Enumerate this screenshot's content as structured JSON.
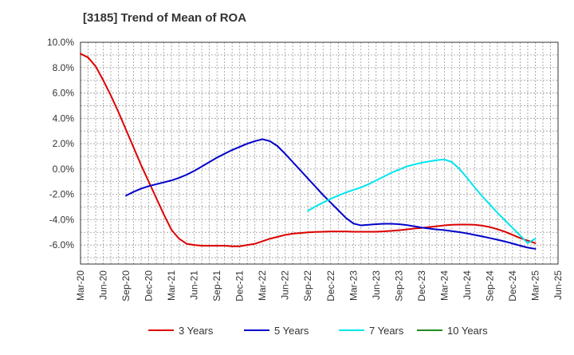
{
  "chart_data": {
    "type": "line",
    "title": "[3185]  Trend of Mean of ROA",
    "xlabel": "",
    "ylabel": "",
    "ylim": [
      -7.5,
      10
    ],
    "y_ticks": [
      10,
      8,
      6,
      4,
      2,
      0,
      -2,
      -4,
      -6
    ],
    "y_tick_labels": [
      "10.0%",
      "8.0%",
      "6.0%",
      "4.0%",
      "2.0%",
      "0.0%",
      "-2.0%",
      "-4.0%",
      "-6.0%"
    ],
    "x_ticks": [
      "Mar-20",
      "Jun-20",
      "Sep-20",
      "Dec-20",
      "Mar-21",
      "Jun-21",
      "Sep-21",
      "Dec-21",
      "Mar-22",
      "Jun-22",
      "Sep-22",
      "Dec-22",
      "Mar-23",
      "Jun-23",
      "Sep-23",
      "Dec-23",
      "Mar-24",
      "Jun-24",
      "Sep-24",
      "Dec-24",
      "Mar-25",
      "Jun-25"
    ],
    "grid": true,
    "legend_position": "bottom",
    "series": [
      {
        "name": "3 Years",
        "color": "#dd0000",
        "points": [
          [
            "Mar-20",
            9.1
          ],
          [
            "Apr-20",
            8.8
          ],
          [
            "May-20",
            8.1
          ],
          [
            "Jun-20",
            7.0
          ],
          [
            "Jul-20",
            5.8
          ],
          [
            "Aug-20",
            4.5
          ],
          [
            "Sep-20",
            3.1
          ],
          [
            "Oct-20",
            1.7
          ],
          [
            "Nov-20",
            0.3
          ],
          [
            "Dec-20",
            -1.0
          ],
          [
            "Jan-21",
            -2.3
          ],
          [
            "Feb-21",
            -3.6
          ],
          [
            "Mar-21",
            -4.8
          ],
          [
            "Apr-21",
            -5.5
          ],
          [
            "May-21",
            -5.9
          ],
          [
            "Jun-21",
            -6.0
          ],
          [
            "Jul-21",
            -6.05
          ],
          [
            "Aug-21",
            -6.05
          ],
          [
            "Sep-21",
            -6.05
          ],
          [
            "Oct-21",
            -6.05
          ],
          [
            "Nov-21",
            -6.1
          ],
          [
            "Dec-21",
            -6.1
          ],
          [
            "Jan-22",
            -6.0
          ],
          [
            "Feb-22",
            -5.9
          ],
          [
            "Mar-22",
            -5.7
          ],
          [
            "Apr-22",
            -5.5
          ],
          [
            "May-22",
            -5.35
          ],
          [
            "Jun-22",
            -5.2
          ],
          [
            "Jul-22",
            -5.1
          ],
          [
            "Aug-22",
            -5.05
          ],
          [
            "Sep-22",
            -5.0
          ],
          [
            "Oct-22",
            -4.97
          ],
          [
            "Nov-22",
            -4.95
          ],
          [
            "Dec-22",
            -4.93
          ],
          [
            "Jan-23",
            -4.93
          ],
          [
            "Feb-23",
            -4.93
          ],
          [
            "Mar-23",
            -4.95
          ],
          [
            "Apr-23",
            -4.95
          ],
          [
            "May-23",
            -4.95
          ],
          [
            "Jun-23",
            -4.95
          ],
          [
            "Jul-23",
            -4.92
          ],
          [
            "Aug-23",
            -4.88
          ],
          [
            "Sep-23",
            -4.83
          ],
          [
            "Oct-23",
            -4.77
          ],
          [
            "Nov-23",
            -4.7
          ],
          [
            "Dec-23",
            -4.65
          ],
          [
            "Jan-24",
            -4.58
          ],
          [
            "Feb-24",
            -4.52
          ],
          [
            "Mar-24",
            -4.45
          ],
          [
            "Apr-24",
            -4.4
          ],
          [
            "May-24",
            -4.38
          ],
          [
            "Jun-24",
            -4.38
          ],
          [
            "Jul-24",
            -4.4
          ],
          [
            "Aug-24",
            -4.47
          ],
          [
            "Sep-24",
            -4.58
          ],
          [
            "Oct-24",
            -4.75
          ],
          [
            "Nov-24",
            -4.95
          ],
          [
            "Dec-24",
            -5.2
          ],
          [
            "Jan-25",
            -5.45
          ],
          [
            "Feb-25",
            -5.65
          ],
          [
            "Mar-25",
            -5.85
          ]
        ]
      },
      {
        "name": "5 Years",
        "color": "#0000cc",
        "points": [
          [
            "Sep-20",
            -2.1
          ],
          [
            "Oct-20",
            -1.8
          ],
          [
            "Nov-20",
            -1.55
          ],
          [
            "Dec-20",
            -1.35
          ],
          [
            "Jan-21",
            -1.2
          ],
          [
            "Feb-21",
            -1.05
          ],
          [
            "Mar-21",
            -0.9
          ],
          [
            "Apr-21",
            -0.7
          ],
          [
            "May-21",
            -0.45
          ],
          [
            "Jun-21",
            -0.15
          ],
          [
            "Jul-21",
            0.2
          ],
          [
            "Aug-21",
            0.55
          ],
          [
            "Sep-21",
            0.9
          ],
          [
            "Oct-21",
            1.2
          ],
          [
            "Nov-21",
            1.5
          ],
          [
            "Dec-21",
            1.75
          ],
          [
            "Jan-22",
            2.0
          ],
          [
            "Feb-22",
            2.2
          ],
          [
            "Mar-22",
            2.35
          ],
          [
            "Apr-22",
            2.2
          ],
          [
            "May-22",
            1.8
          ],
          [
            "Jun-22",
            1.2
          ],
          [
            "Jul-22",
            0.55
          ],
          [
            "Aug-22",
            -0.1
          ],
          [
            "Sep-22",
            -0.75
          ],
          [
            "Oct-22",
            -1.4
          ],
          [
            "Nov-22",
            -2.05
          ],
          [
            "Dec-22",
            -2.65
          ],
          [
            "Jan-23",
            -3.25
          ],
          [
            "Feb-23",
            -3.85
          ],
          [
            "Mar-23",
            -4.3
          ],
          [
            "Apr-23",
            -4.45
          ],
          [
            "May-23",
            -4.4
          ],
          [
            "Jun-23",
            -4.35
          ],
          [
            "Jul-23",
            -4.32
          ],
          [
            "Aug-23",
            -4.32
          ],
          [
            "Sep-23",
            -4.35
          ],
          [
            "Oct-23",
            -4.42
          ],
          [
            "Nov-23",
            -4.52
          ],
          [
            "Dec-23",
            -4.62
          ],
          [
            "Jan-24",
            -4.7
          ],
          [
            "Feb-24",
            -4.77
          ],
          [
            "Mar-24",
            -4.82
          ],
          [
            "Apr-24",
            -4.9
          ],
          [
            "May-24",
            -4.98
          ],
          [
            "Jun-24",
            -5.08
          ],
          [
            "Jul-24",
            -5.2
          ],
          [
            "Aug-24",
            -5.32
          ],
          [
            "Sep-24",
            -5.45
          ],
          [
            "Oct-24",
            -5.58
          ],
          [
            "Nov-24",
            -5.72
          ],
          [
            "Dec-24",
            -5.88
          ],
          [
            "Jan-25",
            -6.05
          ],
          [
            "Feb-25",
            -6.2
          ],
          [
            "Mar-25",
            -6.3
          ]
        ]
      },
      {
        "name": "7 Years",
        "color": "#00e5ee",
        "points": [
          [
            "Sep-22",
            -3.3
          ],
          [
            "Oct-22",
            -2.95
          ],
          [
            "Nov-22",
            -2.65
          ],
          [
            "Dec-22",
            -2.35
          ],
          [
            "Jan-23",
            -2.1
          ],
          [
            "Feb-23",
            -1.85
          ],
          [
            "Mar-23",
            -1.65
          ],
          [
            "Apr-23",
            -1.45
          ],
          [
            "May-23",
            -1.2
          ],
          [
            "Jun-23",
            -0.9
          ],
          [
            "Jul-23",
            -0.6
          ],
          [
            "Aug-23",
            -0.3
          ],
          [
            "Sep-23",
            -0.05
          ],
          [
            "Oct-23",
            0.2
          ],
          [
            "Nov-23",
            0.35
          ],
          [
            "Dec-23",
            0.5
          ],
          [
            "Jan-24",
            0.6
          ],
          [
            "Feb-24",
            0.7
          ],
          [
            "Mar-24",
            0.75
          ],
          [
            "Apr-24",
            0.55
          ],
          [
            "May-24",
            0.0
          ],
          [
            "Jun-24",
            -0.7
          ],
          [
            "Jul-24",
            -1.45
          ],
          [
            "Aug-24",
            -2.15
          ],
          [
            "Sep-24",
            -2.8
          ],
          [
            "Oct-24",
            -3.45
          ],
          [
            "Nov-24",
            -4.05
          ],
          [
            "Dec-24",
            -4.65
          ],
          [
            "Jan-25",
            -5.25
          ],
          [
            "Feb-25",
            -5.85
          ],
          [
            "Mar-25",
            -5.5
          ]
        ]
      },
      {
        "name": "10 Years",
        "color": "#228b22",
        "points": []
      }
    ]
  }
}
